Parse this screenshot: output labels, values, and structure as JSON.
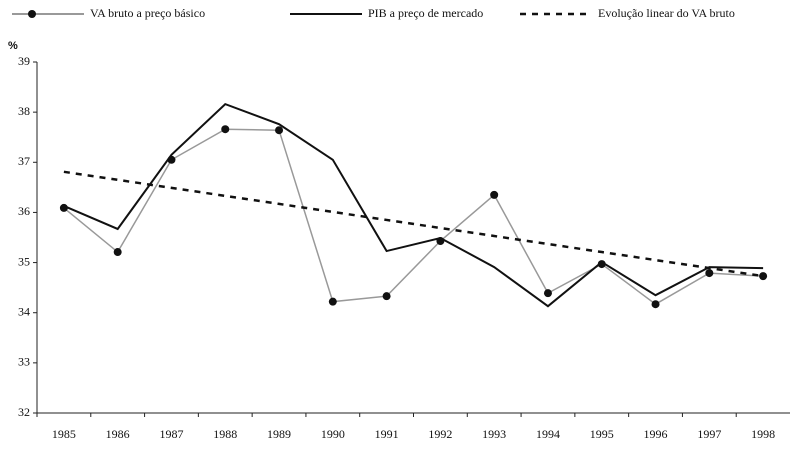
{
  "chart_data": {
    "type": "line",
    "y_label": "%",
    "categories": [
      "1985",
      "1986",
      "1987",
      "1988",
      "1989",
      "1990",
      "1991",
      "1992",
      "1993",
      "1994",
      "1995",
      "1996",
      "1997",
      "1998"
    ],
    "series": [
      {
        "name": "VA bruto a preço básico",
        "color": "#999999",
        "marker": "circle",
        "values": [
          36.09,
          35.21,
          37.05,
          37.66,
          37.64,
          34.22,
          34.33,
          35.43,
          36.35,
          34.39,
          34.97,
          34.17,
          34.79,
          34.73
        ]
      },
      {
        "name": "PIB a preço de mercado",
        "color": "#111111",
        "values": [
          36.13,
          35.67,
          37.15,
          38.16,
          37.76,
          37.05,
          35.23,
          35.49,
          34.91,
          34.13,
          35.01,
          34.35,
          34.91,
          34.89
        ]
      },
      {
        "name": "Evolução linear do VA bruto",
        "color": "#111111",
        "dash": true,
        "values": [
          36.81,
          36.65,
          36.49,
          36.33,
          36.17,
          36.01,
          35.85,
          35.69,
          35.53,
          35.37,
          35.21,
          35.05,
          34.89,
          34.73
        ]
      }
    ],
    "ylim": [
      32,
      39
    ],
    "yticks": [
      32,
      33,
      34,
      35,
      36,
      37,
      38,
      39
    ]
  }
}
